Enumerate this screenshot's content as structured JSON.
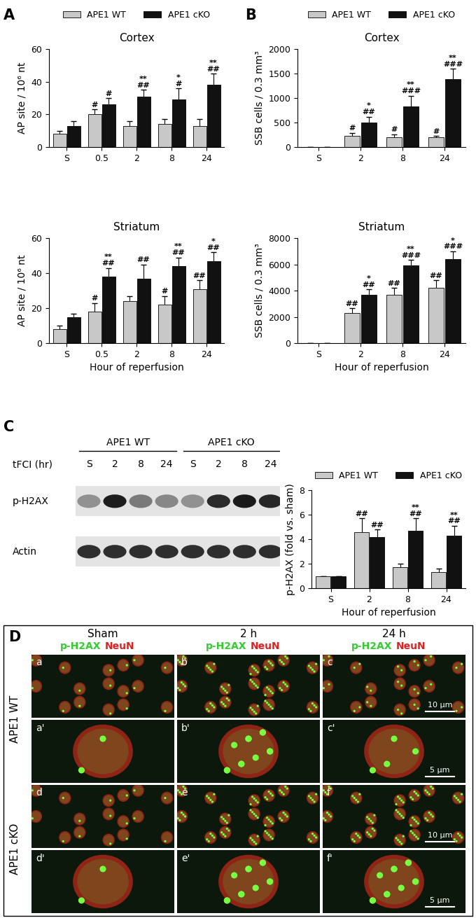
{
  "chart_data": [
    {
      "type": "bar",
      "title": "Cortex",
      "categories": [
        "S",
        "0.5",
        "2",
        "8",
        "24"
      ],
      "ylabel": "AP site / 10⁶ nt",
      "ylim": [
        0,
        60
      ],
      "yticks": [
        0,
        20,
        40,
        60
      ],
      "legend": "top",
      "series": [
        {
          "name": "APE1 WT",
          "color": "#c8c8c8",
          "values": [
            8,
            20,
            13,
            14,
            13
          ],
          "errors": [
            2,
            3,
            3,
            3,
            4
          ],
          "annotations": [
            null,
            "#",
            null,
            null,
            null
          ]
        },
        {
          "name": "APE1 cKO",
          "color": "#111111",
          "values": [
            13,
            26,
            31,
            29,
            38
          ],
          "errors": [
            3,
            4,
            4,
            7,
            7
          ],
          "annotations": [
            null,
            "#",
            "**\n##",
            "*\n#",
            "**\n##"
          ]
        }
      ]
    },
    {
      "type": "bar",
      "title": "Striatum",
      "categories": [
        "S",
        "0.5",
        "2",
        "8",
        "24"
      ],
      "ylabel": "AP site / 10⁶ nt",
      "xlabel": "Hour of reperfusion",
      "ylim": [
        0,
        60
      ],
      "yticks": [
        0,
        20,
        40,
        60
      ],
      "series": [
        {
          "name": "APE1 WT",
          "color": "#c8c8c8",
          "values": [
            8,
            18,
            24,
            22,
            31
          ],
          "errors": [
            2,
            5,
            3,
            5,
            5
          ],
          "annotations": [
            null,
            "#",
            null,
            "#",
            "##"
          ]
        },
        {
          "name": "APE1 cKO",
          "color": "#111111",
          "values": [
            15,
            38,
            37,
            44,
            47
          ],
          "errors": [
            2,
            5,
            8,
            5,
            5
          ],
          "annotations": [
            null,
            "**\n##",
            "##",
            "**\n##",
            "*\n##"
          ]
        }
      ]
    },
    {
      "type": "bar",
      "title": "Cortex",
      "categories": [
        "S",
        "2",
        "8",
        "24"
      ],
      "ylabel": "SSB cells / 0.3 mm³",
      "ylim": [
        0,
        2000
      ],
      "yticks": [
        0,
        500,
        1000,
        1500,
        2000
      ],
      "legend": "top",
      "series": [
        {
          "name": "APE1 WT",
          "color": "#c8c8c8",
          "values": [
            0,
            230,
            200,
            200
          ],
          "errors": [
            0,
            60,
            60,
            30
          ],
          "annotations": [
            null,
            "#",
            "#",
            "#"
          ]
        },
        {
          "name": "APE1 cKO",
          "color": "#111111",
          "values": [
            0,
            500,
            830,
            1380
          ],
          "errors": [
            0,
            120,
            220,
            220
          ],
          "annotations": [
            null,
            "*\n##",
            "**\n###",
            "**\n###"
          ]
        }
      ]
    },
    {
      "type": "bar",
      "title": "Striatum",
      "categories": [
        "S",
        "2",
        "8",
        "24"
      ],
      "ylabel": "SSB cells / 0.3 mm³",
      "xlabel": "Hour of reperfusion",
      "ylim": [
        0,
        8000
      ],
      "yticks": [
        0,
        2000,
        4000,
        6000,
        8000
      ],
      "series": [
        {
          "name": "APE1 WT",
          "color": "#c8c8c8",
          "values": [
            0,
            2300,
            3700,
            4200
          ],
          "errors": [
            0,
            350,
            500,
            600
          ],
          "annotations": [
            null,
            "##",
            "##",
            "##"
          ]
        },
        {
          "name": "APE1 cKO",
          "color": "#111111",
          "values": [
            0,
            3700,
            5900,
            6400
          ],
          "errors": [
            0,
            400,
            450,
            600
          ],
          "annotations": [
            null,
            "*\n##",
            "**\n###",
            "*\n###"
          ]
        }
      ]
    },
    {
      "type": "bar",
      "categories": [
        "S",
        "2",
        "8",
        "24"
      ],
      "ylabel": "p-H2AX (fold vs. sham)",
      "xlabel": "Hour of reperfusion",
      "ylim": [
        0,
        8
      ],
      "yticks": [
        0,
        2,
        4,
        6,
        8
      ],
      "legend": "top",
      "series": [
        {
          "name": "APE1 WT",
          "color": "#c8c8c8",
          "values": [
            1,
            4.6,
            1.7,
            1.3
          ],
          "errors": [
            0,
            1.1,
            0.3,
            0.3
          ],
          "annotations": [
            null,
            "##",
            null,
            null
          ]
        },
        {
          "name": "APE1 cKO",
          "color": "#111111",
          "values": [
            1,
            4.2,
            4.7,
            4.3
          ],
          "errors": [
            0,
            0.6,
            1.0,
            0.8
          ],
          "annotations": [
            null,
            "##",
            "**\n##",
            "**\n##"
          ]
        }
      ]
    }
  ],
  "panel_labels": [
    "A",
    "B",
    "C",
    "D"
  ],
  "blot": {
    "groups": [
      "APE1 WT",
      "APE1 cKO"
    ],
    "time_label": "tFCI (hr)",
    "lanes": [
      "S",
      "2",
      "8",
      "24",
      "S",
      "2",
      "8",
      "24"
    ],
    "bands": [
      "p-H2AX",
      "Actin"
    ]
  },
  "micrographs": {
    "columns": [
      "Sham",
      "2 h",
      "24 h"
    ],
    "stains": [
      {
        "name": "p-H2AX",
        "color": "#33cc33"
      },
      {
        "name": "NeuN",
        "color": "#e02020"
      }
    ],
    "rows": [
      {
        "label": "APE1 WT",
        "panels": [
          [
            "a",
            "b",
            "c"
          ],
          [
            "a'",
            "b'",
            "c'"
          ]
        ]
      },
      {
        "label": "APE1 cKO",
        "panels": [
          [
            "d",
            "e",
            "f"
          ],
          [
            "d'",
            "e'",
            "f'"
          ]
        ]
      }
    ],
    "scale_bars": [
      {
        "panel": "c",
        "label": "10 μm"
      },
      {
        "panel": "c'",
        "label": "5 μm"
      },
      {
        "panel": "f",
        "label": "10 μm"
      },
      {
        "panel": "f'",
        "label": "5 μm"
      }
    ]
  }
}
